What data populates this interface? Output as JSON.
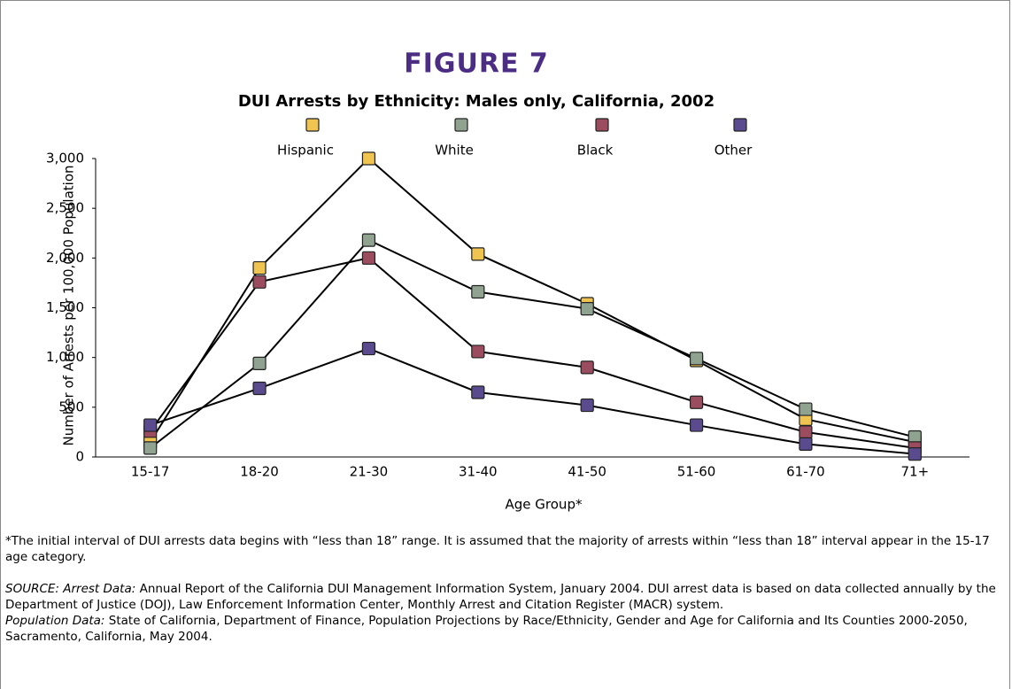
{
  "chart_data": {
    "type": "line",
    "figure_label": "FIGURE 7",
    "title": "DUI Arrests by Ethnicity: Males only, California, 2002",
    "x_label": "Age Group*",
    "y_label": "Number of Arrests per 100,000 Population",
    "categories": [
      "15-17",
      "18-20",
      "21-30",
      "31-40",
      "41-50",
      "51-60",
      "61-70",
      "71+"
    ],
    "series": [
      {
        "name": "Hispanic",
        "color": "#f0c451",
        "values": [
          150,
          1900,
          3000,
          2040,
          1540,
          970,
          380,
          150
        ]
      },
      {
        "name": "White",
        "color": "#8fa390",
        "values": [
          90,
          940,
          2180,
          1660,
          1490,
          990,
          480,
          200
        ]
      },
      {
        "name": "Black",
        "color": "#9b4c5e",
        "values": [
          260,
          1760,
          2000,
          1060,
          900,
          550,
          250,
          90
        ]
      },
      {
        "name": "Other",
        "color": "#5a4a8e",
        "values": [
          320,
          690,
          1090,
          650,
          520,
          320,
          130,
          30
        ]
      }
    ],
    "ylim": [
      0,
      3000
    ],
    "yticks": [
      0,
      500,
      {
        "value": 1000,
        "label": "1,000"
      },
      {
        "value": 1500,
        "label": "1,500"
      },
      {
        "value": 2000,
        "label": "2,000"
      },
      {
        "value": 2500,
        "label": "2,500"
      },
      {
        "value": 3000,
        "label": "3,000"
      }
    ],
    "grid": false,
    "legend": "top"
  },
  "notes": {
    "footnote": "*The initial interval of DUI arrests data begins with “less than 18” range. It is assumed that the majority of arrests within “less than 18” interval appear in the 15-17 age category.",
    "source_label": "SOURCE: Arrest Data:",
    "source_text": " Annual Report of the California DUI Management Information System, January 2004. DUI arrest data is based on data collected annually by the Department of Justice (DOJ), Law Enforcement Information Center, Monthly Arrest and Citation Register (MACR) system.",
    "population_label": "Population Data:",
    "population_text": " State of California, Department of Finance, Population Projections by Race/Ethnicity, Gender and Age for California and Its Counties 2000-2050, Sacramento, California, May 2004."
  }
}
